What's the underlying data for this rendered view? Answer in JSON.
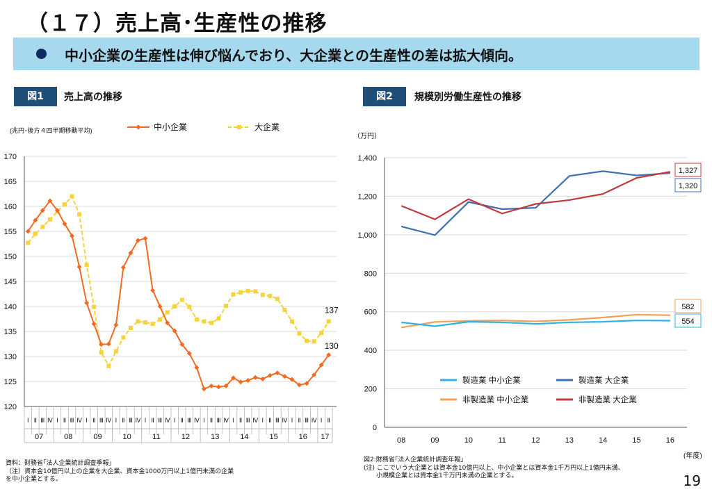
{
  "page": {
    "title": "（１７）売上高･生産性の推移",
    "banner": "中小企業の生産性は伸び悩んでおり、大企業との生産性の差は拡大傾向。",
    "page_number": "19"
  },
  "figures": [
    {
      "badge": "図1",
      "title": "売上高の推移"
    },
    {
      "badge": "図2",
      "title": "規模別労働生産性の推移"
    }
  ],
  "notes": {
    "fig1": [
      "資料：財務省｢法人企業統計調査季報｣",
      "（注）資本金10億円以上の企業を大企業、資本金1000万円以上1億円未満の企業",
      "を中小企業とする。"
    ],
    "fig2": [
      "図2:財務省｢法人企業統計調査年報｣",
      "(注) ここでいう大企業とは資本金10億円以上、中小企業とは資本金1千万円以上1億円未満、",
      "　　小規模企業とは資本金1千万円未満の企業とする。"
    ]
  },
  "colors": {
    "sme": "#f26a21",
    "large": "#f7d33b",
    "mfg_sme": "#2fb1e6",
    "mfg_large": "#3d6fb4",
    "nonmfg_sme": "#f2a052",
    "nonmfg_large": "#c1393a"
  },
  "chart_data": [
    {
      "type": "line",
      "title": "売上高の推移",
      "ylabel": "(兆円･後方４四半期移動平均)",
      "ylim": [
        120,
        170
      ],
      "yticks": [
        "120",
        "125",
        "130",
        "135",
        "140",
        "145",
        "150",
        "155",
        "160",
        "165",
        "170"
      ],
      "quarter_labels": [
        "Ⅰ",
        "Ⅱ",
        "Ⅲ",
        "Ⅳ"
      ],
      "year_labels": [
        "07",
        "08",
        "09",
        "10",
        "11",
        "12",
        "13",
        "14",
        "15",
        "16",
        "17"
      ],
      "series": [
        {
          "name": "中小企業",
          "end_label": "130",
          "values": [
            155.0,
            157.2,
            159.2,
            161.1,
            159.2,
            156.5,
            154.1,
            147.9,
            140.7,
            136.5,
            132.4,
            132.5,
            136.3,
            147.8,
            150.7,
            153.2,
            153.6,
            143.2,
            140.0,
            136.7,
            135.1,
            132.4,
            130.6,
            127.8,
            123.5,
            124.1,
            123.9,
            124.1,
            125.7,
            124.9,
            125.2,
            125.8,
            125.5,
            126.2,
            126.7,
            126.0,
            125.4,
            124.3,
            124.6,
            126.3,
            128.3,
            130.3
          ]
        },
        {
          "name": "大企業",
          "end_label": "137",
          "values": [
            152.7,
            154.5,
            155.9,
            157.4,
            159.0,
            160.4,
            162.0,
            158.4,
            148.3,
            139.9,
            130.8,
            128.1,
            131.0,
            133.8,
            135.7,
            137.0,
            136.8,
            136.5,
            137.4,
            138.8,
            140.0,
            141.3,
            139.9,
            137.4,
            137.0,
            136.7,
            137.6,
            140.1,
            142.4,
            142.8,
            143.1,
            143.0,
            142.3,
            142.1,
            141.5,
            139.3,
            137.0,
            134.6,
            133.1,
            133.0,
            134.7,
            137.0
          ]
        }
      ]
    },
    {
      "type": "line",
      "title": "規模別労働生産性の推移",
      "ylabel": "（万円）",
      "xlabel": "(年度)",
      "ylim": [
        0,
        1400
      ],
      "yticks": [
        "0",
        "200",
        "400",
        "600",
        "800",
        "1,000",
        "1,200",
        "1,400"
      ],
      "categories": [
        "08",
        "09",
        "10",
        "11",
        "12",
        "13",
        "14",
        "15",
        "16"
      ],
      "series": [
        {
          "name": "製造業 中小企業",
          "values": [
            545,
            525,
            548,
            545,
            537,
            545,
            548,
            555,
            554
          ],
          "end_label": "554"
        },
        {
          "name": "製造業 大企業",
          "values": [
            1043,
            998,
            1170,
            1133,
            1140,
            1305,
            1330,
            1308,
            1320
          ],
          "end_label": "1,320"
        },
        {
          "name": "非製造業 中小企業",
          "values": [
            518,
            547,
            553,
            555,
            550,
            558,
            570,
            585,
            582
          ],
          "end_label": "582"
        },
        {
          "name": "非製造業 大企業",
          "values": [
            1150,
            1080,
            1185,
            1110,
            1160,
            1180,
            1212,
            1295,
            1327
          ],
          "end_label": "1,327"
        }
      ]
    }
  ]
}
